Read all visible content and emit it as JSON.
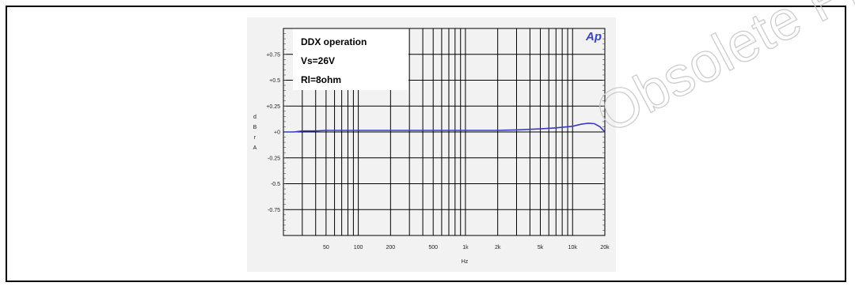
{
  "watermark": {
    "text": "Obsolete Product(s)"
  },
  "chart_data": {
    "type": "line",
    "title": "",
    "xlabel": "Hz",
    "ylabel": "dBr A",
    "ylabel_chars": [
      "d",
      "B",
      "r",
      "A"
    ],
    "xscale": "log",
    "xlim": [
      20,
      20000
    ],
    "ylim": [
      -1,
      1
    ],
    "grid": true,
    "x_ticks": [
      50,
      100,
      200,
      500,
      1000,
      2000,
      5000,
      10000,
      20000
    ],
    "x_tick_labels": [
      "50",
      "100",
      "200",
      "500",
      "1k",
      "2k",
      "5k",
      "10k",
      "20k"
    ],
    "y_ticks": [
      0.75,
      0.5,
      0.25,
      0,
      -0.25,
      -0.5,
      -0.75
    ],
    "y_tick_labels": [
      "+0.75",
      "+0.5",
      "+0.25",
      "+0",
      "-0.25",
      "-0.5",
      "-0.75"
    ],
    "annotations": [
      "DDX operation",
      "Vs=26V",
      "Rl=8ohm"
    ],
    "logo_text": "Ap",
    "series": [
      {
        "color": "#3a3acc",
        "x": [
          20,
          25,
          30,
          40,
          50,
          70,
          100,
          150,
          200,
          300,
          500,
          700,
          1000,
          1500,
          2000,
          3000,
          5000,
          7000,
          10000,
          12000,
          14000,
          16000,
          18000,
          20000
        ],
        "y": [
          0.0,
          0.0,
          0.01,
          0.01,
          0.015,
          0.015,
          0.015,
          0.015,
          0.015,
          0.015,
          0.015,
          0.015,
          0.015,
          0.015,
          0.015,
          0.02,
          0.03,
          0.04,
          0.055,
          0.075,
          0.085,
          0.08,
          0.05,
          0.0
        ]
      }
    ]
  }
}
